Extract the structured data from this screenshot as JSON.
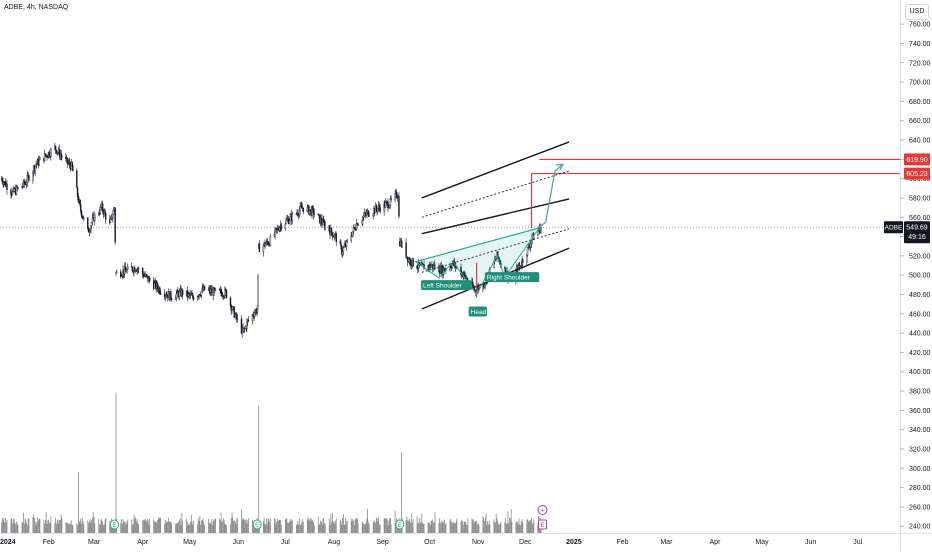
{
  "header": {
    "title": "ADBE, 4h, NASDAQ",
    "currency": "USD"
  },
  "colors": {
    "up": "#22ab94",
    "down": "#f23645",
    "line": "#131722",
    "volume": "#8a8a8a",
    "accent": "#e53935",
    "projection": "#4aa5b8",
    "label_bg": "#1f8f7a",
    "event": "#aa3fa5"
  },
  "price_readout": {
    "symbol": "ADBE",
    "price": "549.69",
    "countdown": "49:16"
  },
  "targets": {
    "upper": "619.90",
    "lower": "605.23"
  },
  "annotations": {
    "left_shoulder": "Left Shoulder",
    "head": "Head",
    "right_shoulder": "Right Shoulder"
  },
  "events": {
    "earnings": "E",
    "add": "+"
  },
  "chart_data": {
    "type": "candlestick",
    "title": "ADBE, 4h, NASDAQ",
    "xlabel": "",
    "ylabel": "",
    "ylim": [
      233,
      785
    ],
    "y_ticks": [
      "760.00",
      "740.00",
      "720.00",
      "700.00",
      "680.00",
      "660.00",
      "640.00",
      "620.00",
      "600.00",
      "580.00",
      "560.00",
      "540.00",
      "520.00",
      "500.00",
      "480.00",
      "460.00",
      "440.00",
      "420.00",
      "400.00",
      "380.00",
      "360.00",
      "340.00",
      "320.00",
      "300.00",
      "280.00",
      "260.00",
      "240.00"
    ],
    "x_ticks": [
      "2024",
      "Feb",
      "Mar",
      "Apr",
      "May",
      "Jun",
      "Jul",
      "Aug",
      "Sep",
      "Oct",
      "Nov",
      "Dec",
      "2025",
      "Feb",
      "Mar",
      "Apr",
      "May",
      "Jun",
      "Jul"
    ],
    "x_tick_dates": [
      "2024-01-01",
      "2024-02-01",
      "2024-03-01",
      "2024-04-01",
      "2024-05-01",
      "2024-06-01",
      "2024-07-01",
      "2024-08-01",
      "2024-09-01",
      "2024-10-01",
      "2024-11-01",
      "2024-12-01",
      "2025-01-01",
      "2025-02-01",
      "2025-03-01",
      "2025-04-01",
      "2025-05-01",
      "2025-06-01",
      "2025-07-01"
    ],
    "x_range": [
      "2024-01-01",
      "2025-07-28"
    ],
    "price_path": [
      [
        "2024-01-02",
        600
      ],
      [
        "2024-01-09",
        585
      ],
      [
        "2024-01-17",
        595
      ],
      [
        "2024-01-24",
        615
      ],
      [
        "2024-01-31",
        625
      ],
      [
        "2024-02-05",
        632
      ],
      [
        "2024-02-12",
        618
      ],
      [
        "2024-02-16",
        612
      ],
      [
        "2024-02-21",
        570
      ],
      [
        "2024-02-26",
        545
      ],
      [
        "2024-03-01",
        560
      ],
      [
        "2024-03-06",
        570
      ],
      [
        "2024-03-11",
        552
      ],
      [
        "2024-03-14",
        570
      ],
      [
        "2024-03-15",
        502
      ],
      [
        "2024-03-22",
        505
      ],
      [
        "2024-03-28",
        508
      ],
      [
        "2024-04-05",
        495
      ],
      [
        "2024-04-12",
        485
      ],
      [
        "2024-04-19",
        478
      ],
      [
        "2024-04-26",
        482
      ],
      [
        "2024-05-03",
        477
      ],
      [
        "2024-05-10",
        485
      ],
      [
        "2024-05-17",
        482
      ],
      [
        "2024-05-24",
        482
      ],
      [
        "2024-05-30",
        458
      ],
      [
        "2024-06-04",
        440
      ],
      [
        "2024-06-07",
        452
      ],
      [
        "2024-06-13",
        465
      ],
      [
        "2024-06-14",
        528
      ],
      [
        "2024-06-21",
        535
      ],
      [
        "2024-06-28",
        552
      ],
      [
        "2024-07-05",
        560
      ],
      [
        "2024-07-12",
        570
      ],
      [
        "2024-07-19",
        565
      ],
      [
        "2024-07-26",
        552
      ],
      [
        "2024-08-02",
        540
      ],
      [
        "2024-08-06",
        525
      ],
      [
        "2024-08-09",
        532
      ],
      [
        "2024-08-16",
        555
      ],
      [
        "2024-08-23",
        565
      ],
      [
        "2024-08-30",
        570
      ],
      [
        "2024-09-06",
        575
      ],
      [
        "2024-09-11",
        585
      ],
      [
        "2024-09-12",
        535
      ],
      [
        "2024-09-18",
        515
      ],
      [
        "2024-09-25",
        508
      ],
      [
        "2024-10-02",
        510
      ],
      [
        "2024-10-09",
        505
      ],
      [
        "2024-10-16",
        512
      ],
      [
        "2024-10-23",
        500
      ],
      [
        "2024-10-30",
        484
      ],
      [
        "2024-11-04",
        490
      ],
      [
        "2024-11-08",
        502
      ],
      [
        "2024-11-13",
        520
      ],
      [
        "2024-11-18",
        505
      ],
      [
        "2024-11-22",
        495
      ],
      [
        "2024-11-27",
        508
      ],
      [
        "2024-12-03",
        528
      ],
      [
        "2024-12-06",
        540
      ],
      [
        "2024-12-11",
        549.69
      ]
    ],
    "volume_spikes": [
      [
        "2024-02-20",
        296
      ],
      [
        "2024-03-15",
        378
      ],
      [
        "2024-06-14",
        365
      ],
      [
        "2024-09-13",
        316
      ]
    ],
    "volume_base": 241,
    "pattern": {
      "name": "inverse head and shoulders",
      "left_shoulder": [
        "2024-10-07",
        497
      ],
      "head": [
        "2024-10-31",
        480
      ],
      "right_shoulder": [
        "2024-11-18",
        498
      ],
      "neckline": [
        [
          "2024-09-22",
          514
        ],
        [
          "2024-12-10",
          549
        ]
      ]
    },
    "channel": {
      "upper": [
        [
          "2024-09-26",
          580
        ],
        [
          "2024-12-29",
          638
        ]
      ],
      "middle": [
        [
          "2024-09-26",
          543
        ],
        [
          "2024-12-29",
          579
        ]
      ],
      "mid_upper_dotted": [
        [
          "2024-09-26",
          560
        ],
        [
          "2024-12-29",
          608
        ]
      ],
      "mid_lower_dotted": [
        [
          "2024-09-26",
          503
        ],
        [
          "2024-12-29",
          548
        ]
      ],
      "lower": [
        [
          "2024-09-26",
          465
        ],
        [
          "2024-12-29",
          528
        ]
      ]
    },
    "measure_verticals": [
      {
        "date": "2024-10-31",
        "from": 480,
        "to": 513
      },
      {
        "date": "2024-12-05",
        "from": 549,
        "to": 605.23
      }
    ],
    "projection": [
      [
        "2024-12-10",
        549.69
      ],
      [
        "2024-12-14",
        555
      ],
      [
        "2024-12-20",
        608
      ],
      [
        "2024-12-25",
        615
      ]
    ],
    "horizontal_levels": [
      619.9,
      605.23,
      549.69
    ]
  }
}
